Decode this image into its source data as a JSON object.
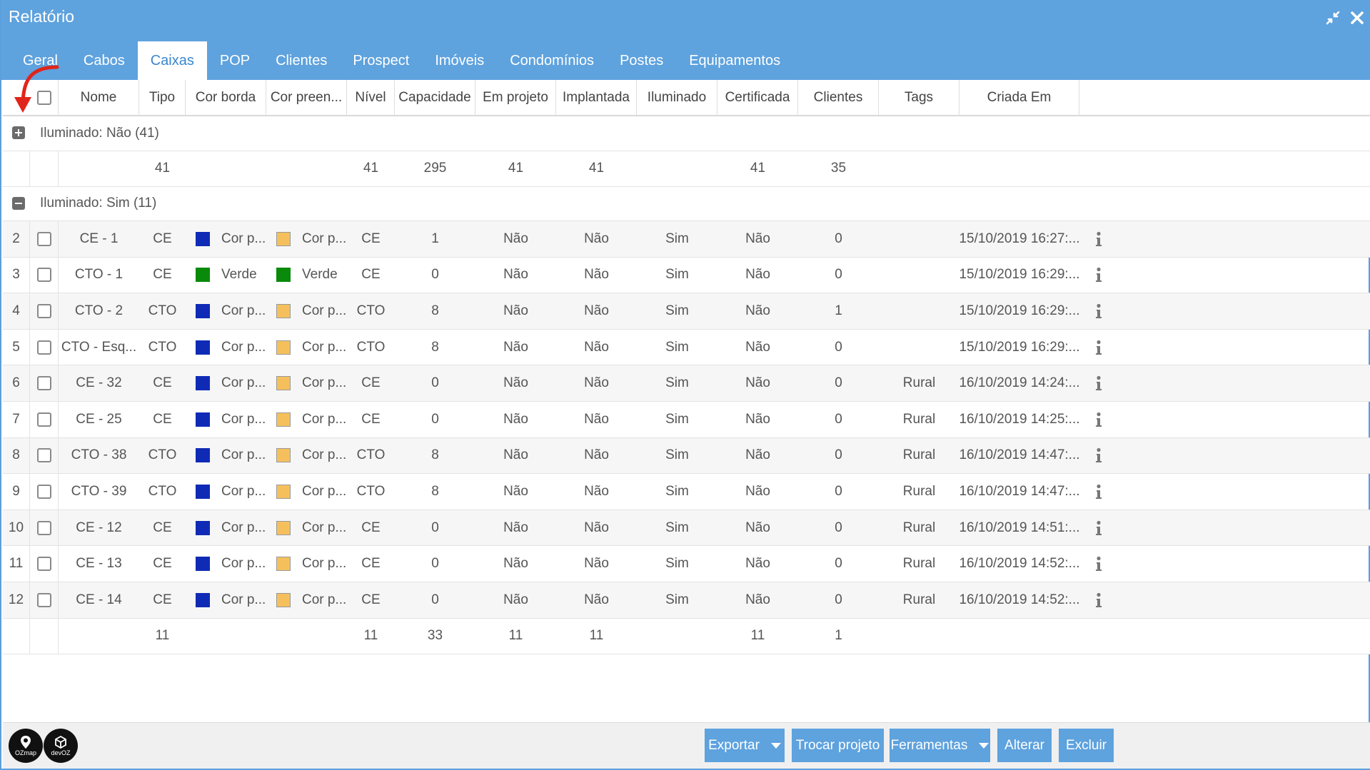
{
  "window": {
    "title": "Relatório"
  },
  "tabs": [
    {
      "label": "Geral",
      "active": false
    },
    {
      "label": "Cabos",
      "active": false
    },
    {
      "label": "Caixas",
      "active": true
    },
    {
      "label": "POP",
      "active": false
    },
    {
      "label": "Clientes",
      "active": false
    },
    {
      "label": "Prospect",
      "active": false
    },
    {
      "label": "Imóveis",
      "active": false
    },
    {
      "label": "Condomínios",
      "active": false
    },
    {
      "label": "Postes",
      "active": false
    },
    {
      "label": "Equipamentos",
      "active": false
    }
  ],
  "columns": [
    "Nome",
    "Tipo",
    "Cor borda",
    "Cor preen...",
    "Nível",
    "Capacidade",
    "Em projeto",
    "Implantada",
    "Iluminado",
    "Certificada",
    "Clientes",
    "Tags",
    "Criada Em"
  ],
  "groups": [
    {
      "label": "Iluminado: Não (41)",
      "expanded": false,
      "summary": {
        "tipo": "41",
        "nivel": "41",
        "capacidade": "295",
        "em_projeto": "41",
        "implantada": "41",
        "certificada": "41",
        "clientes": "35"
      }
    },
    {
      "label": "Iluminado: Sim (11)",
      "expanded": true,
      "summary": {
        "tipo": "11",
        "nivel": "11",
        "capacidade": "33",
        "em_projeto": "11",
        "implantada": "11",
        "certificada": "11",
        "clientes": "1"
      }
    }
  ],
  "rows": [
    {
      "num": "2",
      "nome": "CE - 1",
      "tipo": "CE",
      "cor_borda": {
        "label": "Cor p...",
        "color": "#0f2bb5"
      },
      "cor_preen": {
        "label": "Cor p...",
        "color": "#f5c05c"
      },
      "nivel": "CE",
      "capacidade": "1",
      "em_projeto": "Não",
      "implantada": "Não",
      "iluminado": "Sim",
      "certificada": "Não",
      "clientes": "0",
      "tags": "",
      "criada_em": "15/10/2019 16:27:..."
    },
    {
      "num": "3",
      "nome": "CTO - 1",
      "tipo": "CE",
      "cor_borda": {
        "label": "Verde",
        "color": "#0a8a0a"
      },
      "cor_preen": {
        "label": "Verde",
        "color": "#0a8a0a"
      },
      "nivel": "CE",
      "capacidade": "0",
      "em_projeto": "Não",
      "implantada": "Não",
      "iluminado": "Sim",
      "certificada": "Não",
      "clientes": "0",
      "tags": "",
      "criada_em": "15/10/2019 16:29:..."
    },
    {
      "num": "4",
      "nome": "CTO - 2",
      "tipo": "CTO",
      "cor_borda": {
        "label": "Cor p...",
        "color": "#0f2bb5"
      },
      "cor_preen": {
        "label": "Cor p...",
        "color": "#f5c05c"
      },
      "nivel": "CTO",
      "capacidade": "8",
      "em_projeto": "Não",
      "implantada": "Não",
      "iluminado": "Sim",
      "certificada": "Não",
      "clientes": "1",
      "tags": "",
      "criada_em": "15/10/2019 16:29:..."
    },
    {
      "num": "5",
      "nome": "CTO - Esq...",
      "tipo": "CTO",
      "cor_borda": {
        "label": "Cor p...",
        "color": "#0f2bb5"
      },
      "cor_preen": {
        "label": "Cor p...",
        "color": "#f5c05c"
      },
      "nivel": "CTO",
      "capacidade": "8",
      "em_projeto": "Não",
      "implantada": "Não",
      "iluminado": "Sim",
      "certificada": "Não",
      "clientes": "0",
      "tags": "",
      "criada_em": "15/10/2019 16:29:..."
    },
    {
      "num": "6",
      "nome": "CE - 32",
      "tipo": "CE",
      "cor_borda": {
        "label": "Cor p...",
        "color": "#0f2bb5"
      },
      "cor_preen": {
        "label": "Cor p...",
        "color": "#f5c05c"
      },
      "nivel": "CE",
      "capacidade": "0",
      "em_projeto": "Não",
      "implantada": "Não",
      "iluminado": "Sim",
      "certificada": "Não",
      "clientes": "0",
      "tags": "Rural",
      "criada_em": "16/10/2019 14:24:..."
    },
    {
      "num": "7",
      "nome": "CE - 25",
      "tipo": "CE",
      "cor_borda": {
        "label": "Cor p...",
        "color": "#0f2bb5"
      },
      "cor_preen": {
        "label": "Cor p...",
        "color": "#f5c05c"
      },
      "nivel": "CE",
      "capacidade": "0",
      "em_projeto": "Não",
      "implantada": "Não",
      "iluminado": "Sim",
      "certificada": "Não",
      "clientes": "0",
      "tags": "Rural",
      "criada_em": "16/10/2019 14:25:..."
    },
    {
      "num": "8",
      "nome": "CTO - 38",
      "tipo": "CTO",
      "cor_borda": {
        "label": "Cor p...",
        "color": "#0f2bb5"
      },
      "cor_preen": {
        "label": "Cor p...",
        "color": "#f5c05c"
      },
      "nivel": "CTO",
      "capacidade": "8",
      "em_projeto": "Não",
      "implantada": "Não",
      "iluminado": "Sim",
      "certificada": "Não",
      "clientes": "0",
      "tags": "Rural",
      "criada_em": "16/10/2019 14:47:..."
    },
    {
      "num": "9",
      "nome": "CTO - 39",
      "tipo": "CTO",
      "cor_borda": {
        "label": "Cor p...",
        "color": "#0f2bb5"
      },
      "cor_preen": {
        "label": "Cor p...",
        "color": "#f5c05c"
      },
      "nivel": "CTO",
      "capacidade": "8",
      "em_projeto": "Não",
      "implantada": "Não",
      "iluminado": "Sim",
      "certificada": "Não",
      "clientes": "0",
      "tags": "Rural",
      "criada_em": "16/10/2019 14:47:..."
    },
    {
      "num": "10",
      "nome": "CE - 12",
      "tipo": "CE",
      "cor_borda": {
        "label": "Cor p...",
        "color": "#0f2bb5"
      },
      "cor_preen": {
        "label": "Cor p...",
        "color": "#f5c05c"
      },
      "nivel": "CE",
      "capacidade": "0",
      "em_projeto": "Não",
      "implantada": "Não",
      "iluminado": "Sim",
      "certificada": "Não",
      "clientes": "0",
      "tags": "Rural",
      "criada_em": "16/10/2019 14:51:..."
    },
    {
      "num": "11",
      "nome": "CE - 13",
      "tipo": "CE",
      "cor_borda": {
        "label": "Cor p...",
        "color": "#0f2bb5"
      },
      "cor_preen": {
        "label": "Cor p...",
        "color": "#f5c05c"
      },
      "nivel": "CE",
      "capacidade": "0",
      "em_projeto": "Não",
      "implantada": "Não",
      "iluminado": "Sim",
      "certificada": "Não",
      "clientes": "0",
      "tags": "Rural",
      "criada_em": "16/10/2019 14:52:..."
    },
    {
      "num": "12",
      "nome": "CE - 14",
      "tipo": "CE",
      "cor_borda": {
        "label": "Cor p...",
        "color": "#0f2bb5"
      },
      "cor_preen": {
        "label": "Cor p...",
        "color": "#f5c05c"
      },
      "nivel": "CE",
      "capacidade": "0",
      "em_projeto": "Não",
      "implantada": "Não",
      "iluminado": "Sim",
      "certificada": "Não",
      "clientes": "0",
      "tags": "Rural",
      "criada_em": "16/10/2019 14:52:..."
    }
  ],
  "footer": {
    "logos": [
      {
        "icon": "ozmap-pin-icon",
        "text": "OZmap"
      },
      {
        "icon": "devoz-cube-icon",
        "text": "devOZ"
      }
    ],
    "buttons": [
      {
        "label": "Exportar",
        "dropdown": true
      },
      {
        "label": "Trocar projeto",
        "dropdown": false
      },
      {
        "label": "Ferramentas",
        "dropdown": true
      },
      {
        "label": "Alterar",
        "dropdown": false
      },
      {
        "label": "Excluir",
        "dropdown": false
      }
    ]
  },
  "colors": {
    "accent": "#5ea2de",
    "annotation_arrow": "#e0251b"
  }
}
